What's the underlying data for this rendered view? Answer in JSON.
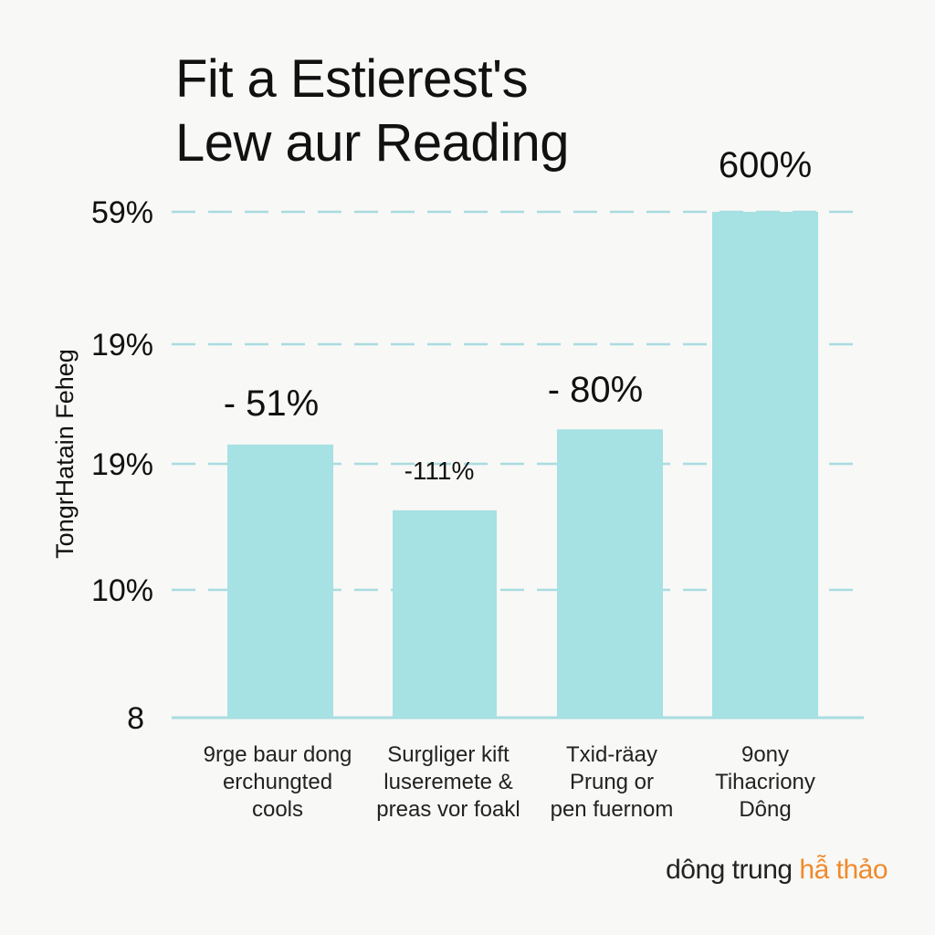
{
  "chart_data": {
    "type": "bar",
    "title_lines": [
      "Fit a Estierest's",
      "Lew aur Reading"
    ],
    "ylabel": "TongrHatain Feheg",
    "y_tick_labels": [
      "59%",
      "19%",
      "19%",
      "10%",
      "8"
    ],
    "categories": [
      [
        "9rge baur dong",
        "erchungted",
        "cools"
      ],
      [
        "Surgliger kift",
        "luseremete &",
        "preas vor foakl"
      ],
      [
        "Txid-räay",
        "Prung or",
        "pen fuernom"
      ],
      [
        "9ony",
        "Tihacriony",
        "Dông"
      ]
    ],
    "values": [
      0.54,
      0.41,
      0.57,
      1.0
    ],
    "value_scale": "fraction of plotted range (baseline to top gridline)",
    "data_labels": [
      "- 51%",
      "-111%",
      "- 80%",
      "600%"
    ],
    "grid": true,
    "bar_color": "#a6e1e3",
    "grid_color": "#a8dce0"
  },
  "watermark": {
    "prefix": "dông trung ",
    "accent": "hẫ thảo",
    "accent_color": "#f08a2b"
  }
}
